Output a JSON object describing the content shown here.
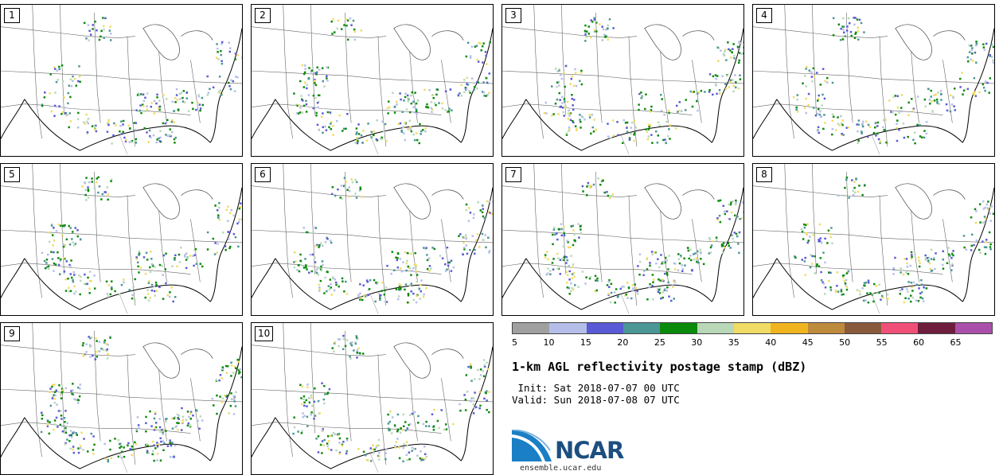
{
  "panels": [
    {
      "label": "1"
    },
    {
      "label": "2"
    },
    {
      "label": "3"
    },
    {
      "label": "4"
    },
    {
      "label": "5"
    },
    {
      "label": "6"
    },
    {
      "label": "7"
    },
    {
      "label": "8"
    },
    {
      "label": "9"
    },
    {
      "label": "10"
    }
  ],
  "colorbar": {
    "colors": [
      "#a0a0a0",
      "#b4bee8",
      "#5a5ad6",
      "#4c9696",
      "#0a8a0a",
      "#b8d8b8",
      "#f0dc64",
      "#f0b41e",
      "#be8a3c",
      "#8a5a3c",
      "#f05078",
      "#6e1e3c",
      "#aa50aa"
    ],
    "ticks": [
      "5",
      "10",
      "15",
      "20",
      "25",
      "30",
      "35",
      "40",
      "45",
      "50",
      "55",
      "60",
      "65"
    ]
  },
  "title": "1-km AGL reflectivity postage stamp (dBZ)",
  "init": " Init: Sat 2018-07-07 00 UTC",
  "valid": "Valid: Sun 2018-07-08 07 UTC",
  "logo": {
    "text": "NCAR",
    "url": "ensemble.ucar.edu"
  }
}
